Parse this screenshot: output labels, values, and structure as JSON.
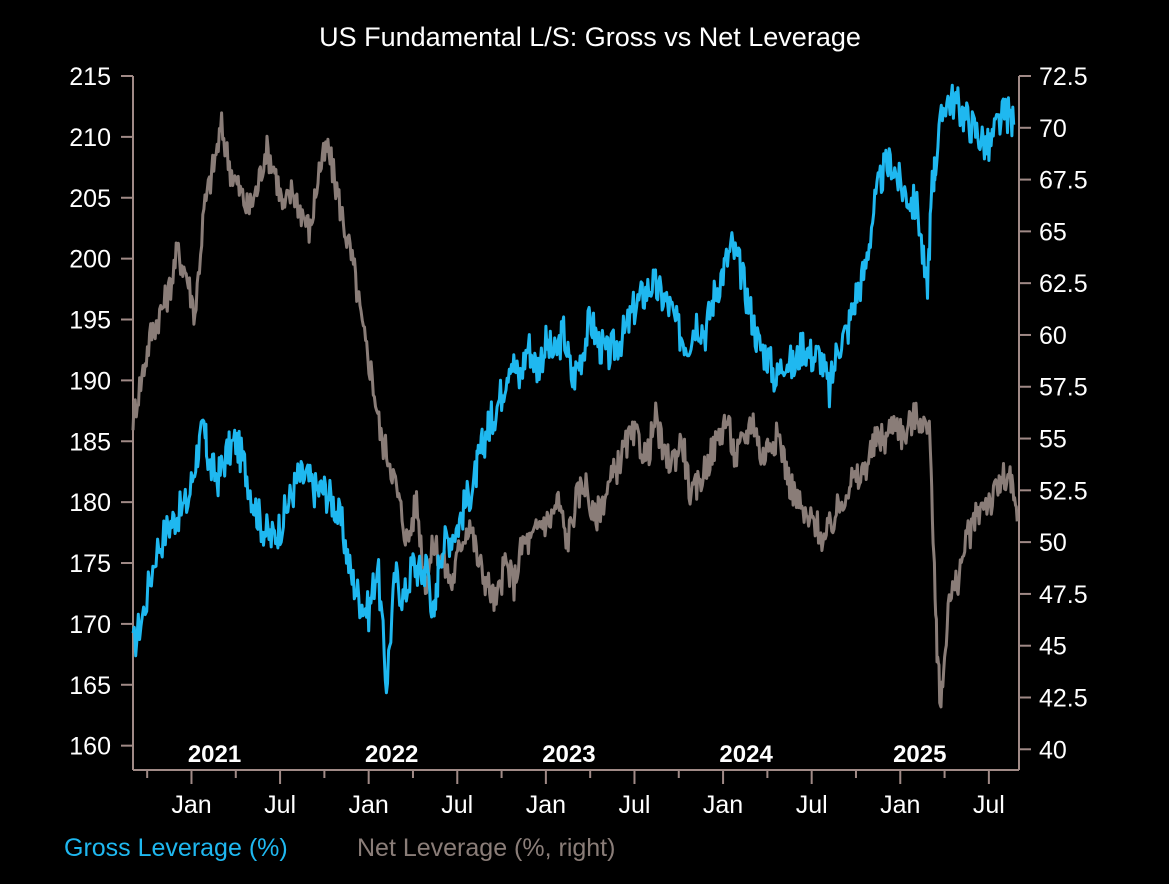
{
  "chart_data": {
    "type": "line",
    "title": "US Fundamental L/S: Gross vs Net Leverage",
    "xlabel": "",
    "ylabel": "",
    "ylabel_right": "",
    "x_range": [
      2020.67,
      2025.67
    ],
    "left_axis": {
      "ylim": [
        158,
        215
      ],
      "ticks": [
        "160",
        "165",
        "170",
        "175",
        "180",
        "185",
        "190",
        "195",
        "200",
        "205",
        "210",
        "215"
      ]
    },
    "right_axis": {
      "ylim": [
        39,
        72.5
      ],
      "ticks": [
        "40",
        "42.5",
        "45",
        "47.5",
        "50",
        "52.5",
        "55",
        "57.5",
        "60",
        "62.5",
        "65",
        "67.5",
        "70",
        "72.5"
      ]
    },
    "x_ticks": [
      "Jan",
      "Jul",
      "Jan",
      "Jul",
      "Jan",
      "Jul",
      "Jan",
      "Jul",
      "Jan",
      "Jul"
    ],
    "x_tick_values": [
      2021.0,
      2021.5,
      2022.0,
      2022.5,
      2023.0,
      2023.5,
      2024.0,
      2024.5,
      2025.0,
      2025.5
    ],
    "year_labels": [
      "2021",
      "2022",
      "2023",
      "2024",
      "2025"
    ],
    "year_label_values": [
      2021.13,
      2022.13,
      2023.13,
      2024.13,
      2025.11
    ],
    "legend_position": "bottom-left",
    "series": [
      {
        "name": "Gross Leverage (%)",
        "axis": "left",
        "color": "#1fb8f0",
        "x": [
          2020.67,
          2020.73,
          2020.8,
          2020.87,
          2020.92,
          2020.98,
          2021.03,
          2021.07,
          2021.1,
          2021.15,
          2021.2,
          2021.25,
          2021.3,
          2021.35,
          2021.4,
          2021.45,
          2021.5,
          2021.55,
          2021.6,
          2021.65,
          2021.7,
          2021.75,
          2021.8,
          2021.85,
          2021.9,
          2021.95,
          2022.0,
          2022.05,
          2022.1,
          2022.15,
          2022.2,
          2022.25,
          2022.3,
          2022.33,
          2022.37,
          2022.4,
          2022.45,
          2022.5,
          2022.55,
          2022.6,
          2022.63,
          2022.67,
          2022.7,
          2022.75,
          2022.8,
          2022.85,
          2022.9,
          2022.95,
          2023.0,
          2023.05,
          2023.1,
          2023.15,
          2023.2,
          2023.25,
          2023.3,
          2023.35,
          2023.4,
          2023.45,
          2023.5,
          2023.55,
          2023.6,
          2023.65,
          2023.7,
          2023.75,
          2023.8,
          2023.85,
          2023.9,
          2023.95,
          2024.0,
          2024.05,
          2024.1,
          2024.15,
          2024.2,
          2024.25,
          2024.3,
          2024.35,
          2024.4,
          2024.45,
          2024.5,
          2024.55,
          2024.6,
          2024.65,
          2024.7,
          2024.75,
          2024.8,
          2024.85,
          2024.9,
          2024.95,
          2025.0,
          2025.05,
          2025.1,
          2025.15,
          2025.18,
          2025.2,
          2025.25,
          2025.3,
          2025.35,
          2025.4,
          2025.45,
          2025.5,
          2025.55,
          2025.6,
          2025.64
        ],
        "values": [
          168,
          171,
          176,
          178,
          179,
          180,
          184,
          186,
          183,
          182,
          184,
          185,
          183,
          180,
          178,
          177,
          178,
          180,
          182,
          182,
          181,
          181,
          180,
          178,
          174,
          172,
          171,
          175,
          165,
          174,
          172,
          175,
          174,
          175,
          170,
          176,
          177,
          178,
          180,
          182,
          184,
          186,
          187,
          189,
          192,
          190,
          193,
          191,
          193,
          192,
          194,
          190,
          192,
          195,
          193,
          192,
          193,
          194,
          196,
          197,
          198,
          197,
          196,
          194,
          193,
          195,
          194,
          197,
          199,
          201,
          199,
          196,
          193,
          192,
          190,
          192,
          191,
          193,
          192,
          192,
          189,
          193,
          194,
          197,
          199,
          204,
          207,
          208,
          206,
          205,
          204,
          197,
          206,
          208,
          213,
          213,
          212,
          211,
          210,
          209,
          211,
          212,
          211
        ]
      },
      {
        "name": "Net Leverage (%, right)",
        "axis": "right",
        "color": "#8a7d78",
        "x": [
          2020.67,
          2020.72,
          2020.77,
          2020.82,
          2020.87,
          2020.92,
          2020.97,
          2021.02,
          2021.07,
          2021.12,
          2021.17,
          2021.22,
          2021.27,
          2021.32,
          2021.37,
          2021.42,
          2021.47,
          2021.52,
          2021.57,
          2021.62,
          2021.67,
          2021.72,
          2021.77,
          2021.82,
          2021.87,
          2021.92,
          2021.97,
          2022.02,
          2022.07,
          2022.12,
          2022.17,
          2022.22,
          2022.27,
          2022.32,
          2022.37,
          2022.42,
          2022.47,
          2022.52,
          2022.57,
          2022.62,
          2022.67,
          2022.72,
          2022.77,
          2022.82,
          2022.87,
          2022.92,
          2022.97,
          2023.02,
          2023.07,
          2023.12,
          2023.17,
          2023.22,
          2023.27,
          2023.32,
          2023.37,
          2023.42,
          2023.47,
          2023.52,
          2023.57,
          2023.62,
          2023.67,
          2023.72,
          2023.77,
          2023.82,
          2023.87,
          2023.92,
          2023.97,
          2024.02,
          2024.07,
          2024.12,
          2024.17,
          2024.22,
          2024.27,
          2024.32,
          2024.37,
          2024.42,
          2024.47,
          2024.52,
          2024.57,
          2024.62,
          2024.67,
          2024.72,
          2024.77,
          2024.82,
          2024.87,
          2024.92,
          2024.97,
          2025.02,
          2025.07,
          2025.12,
          2025.17,
          2025.2,
          2025.23,
          2025.27,
          2025.32,
          2025.37,
          2025.42,
          2025.47,
          2025.52,
          2025.57,
          2025.62,
          2025.66
        ],
        "values": [
          56,
          58,
          60,
          61,
          62,
          64,
          63,
          61,
          66,
          68,
          70,
          68,
          67,
          66,
          67,
          69,
          68,
          66,
          67,
          66,
          65,
          68,
          69,
          67,
          65,
          63,
          60,
          58,
          55,
          54,
          52,
          50,
          52,
          48,
          50,
          49,
          48,
          50,
          51,
          49,
          48,
          47,
          49,
          48,
          50,
          50,
          51,
          51,
          52,
          50,
          52,
          53,
          51,
          52,
          53,
          54,
          55,
          55,
          54,
          56,
          54,
          54,
          55,
          52,
          53,
          54,
          55,
          56,
          54,
          55,
          56,
          54,
          55,
          55,
          53,
          52,
          51,
          51,
          50,
          51,
          52,
          53,
          53,
          54,
          55,
          55,
          56,
          55,
          56,
          56,
          55,
          46,
          42,
          47,
          48,
          50,
          51,
          52,
          52,
          53,
          53,
          51
        ]
      }
    ]
  },
  "legend": {
    "gross_label": "Gross Leverage (%)",
    "net_label": "Net Leverage (%, right)"
  },
  "colors": {
    "gross": "#1fb8f0",
    "net": "#8a7d78",
    "axis": "#a08a86",
    "background": "#000000",
    "text": "#ffffff"
  }
}
